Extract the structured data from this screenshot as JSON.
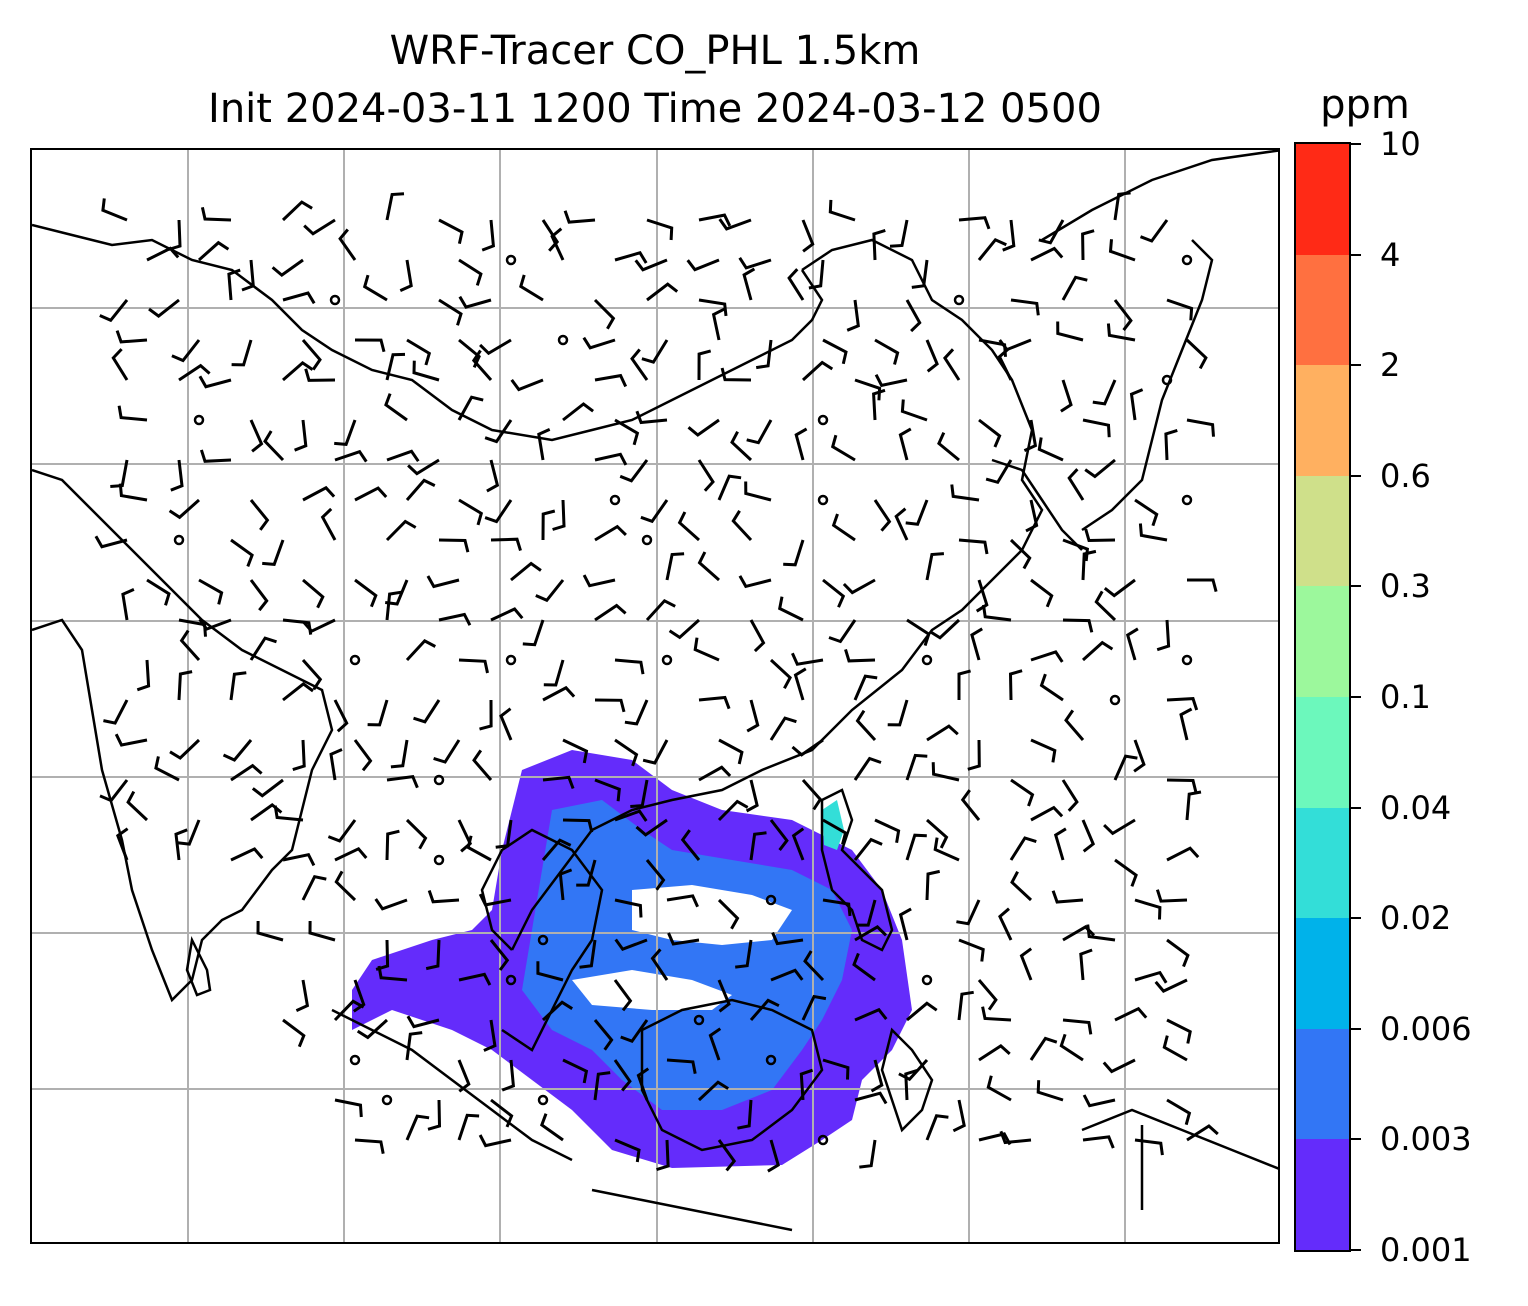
{
  "title": {
    "line1": "WRF-Tracer CO_PHL 1.5km",
    "line2": "Init 2024-03-11 1200 Time 2024-03-12 0500"
  },
  "colorbar": {
    "unit": "ppm",
    "ticks": [
      "10",
      "4",
      "2",
      "0.6",
      "0.3",
      "0.1",
      "0.04",
      "0.02",
      "0.006",
      "0.003",
      "0.001"
    ],
    "colors": [
      "#ff2a16",
      "#ff7040",
      "#ffb060",
      "#cfe08a",
      "#9cf89c",
      "#6cf8bc",
      "#33ded8",
      "#00b2ea",
      "#3276f5",
      "#642cfb"
    ]
  },
  "map": {
    "description_colors": {
      "coast": "#000000",
      "grid": "#b0b0b0",
      "barb": "#000000"
    },
    "gridlines": {
      "verticals": 7,
      "horizontals": 6
    }
  }
}
